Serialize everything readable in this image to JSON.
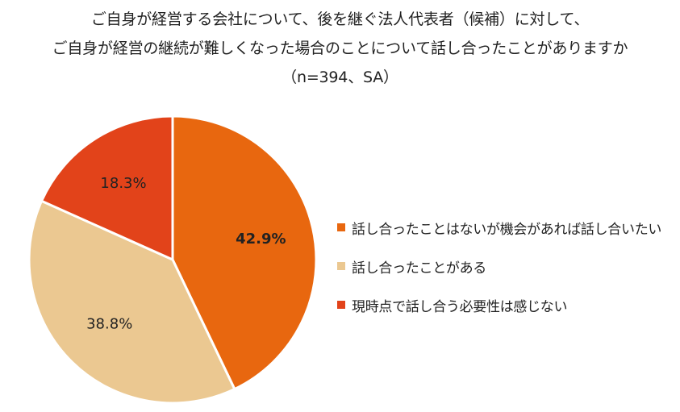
{
  "chart_data": {
    "type": "pie",
    "title": [
      "ご自身が経営する会社について、後を継ぐ法人代表者（候補）に対して、",
      "ご自身が経営の継続が難しくなった場合のことについて話し合ったことがありますか",
      "（n=394、SA）"
    ],
    "slices": [
      {
        "name": "話し合ったことはないが機会があれば話し合いたい",
        "value": 42.9,
        "label": "42.9%",
        "color": "#E8670F",
        "bold": true
      },
      {
        "name": "話し合ったことがある",
        "value": 38.8,
        "label": "38.8%",
        "color": "#EBC891",
        "bold": false
      },
      {
        "name": "現時点で話し合う必要性は感じない",
        "value": 18.3,
        "label": "18.3%",
        "color": "#E2431A",
        "bold": false
      }
    ],
    "start_angle": "12 o'clock",
    "direction": "clockwise",
    "legend_position": "right"
  }
}
